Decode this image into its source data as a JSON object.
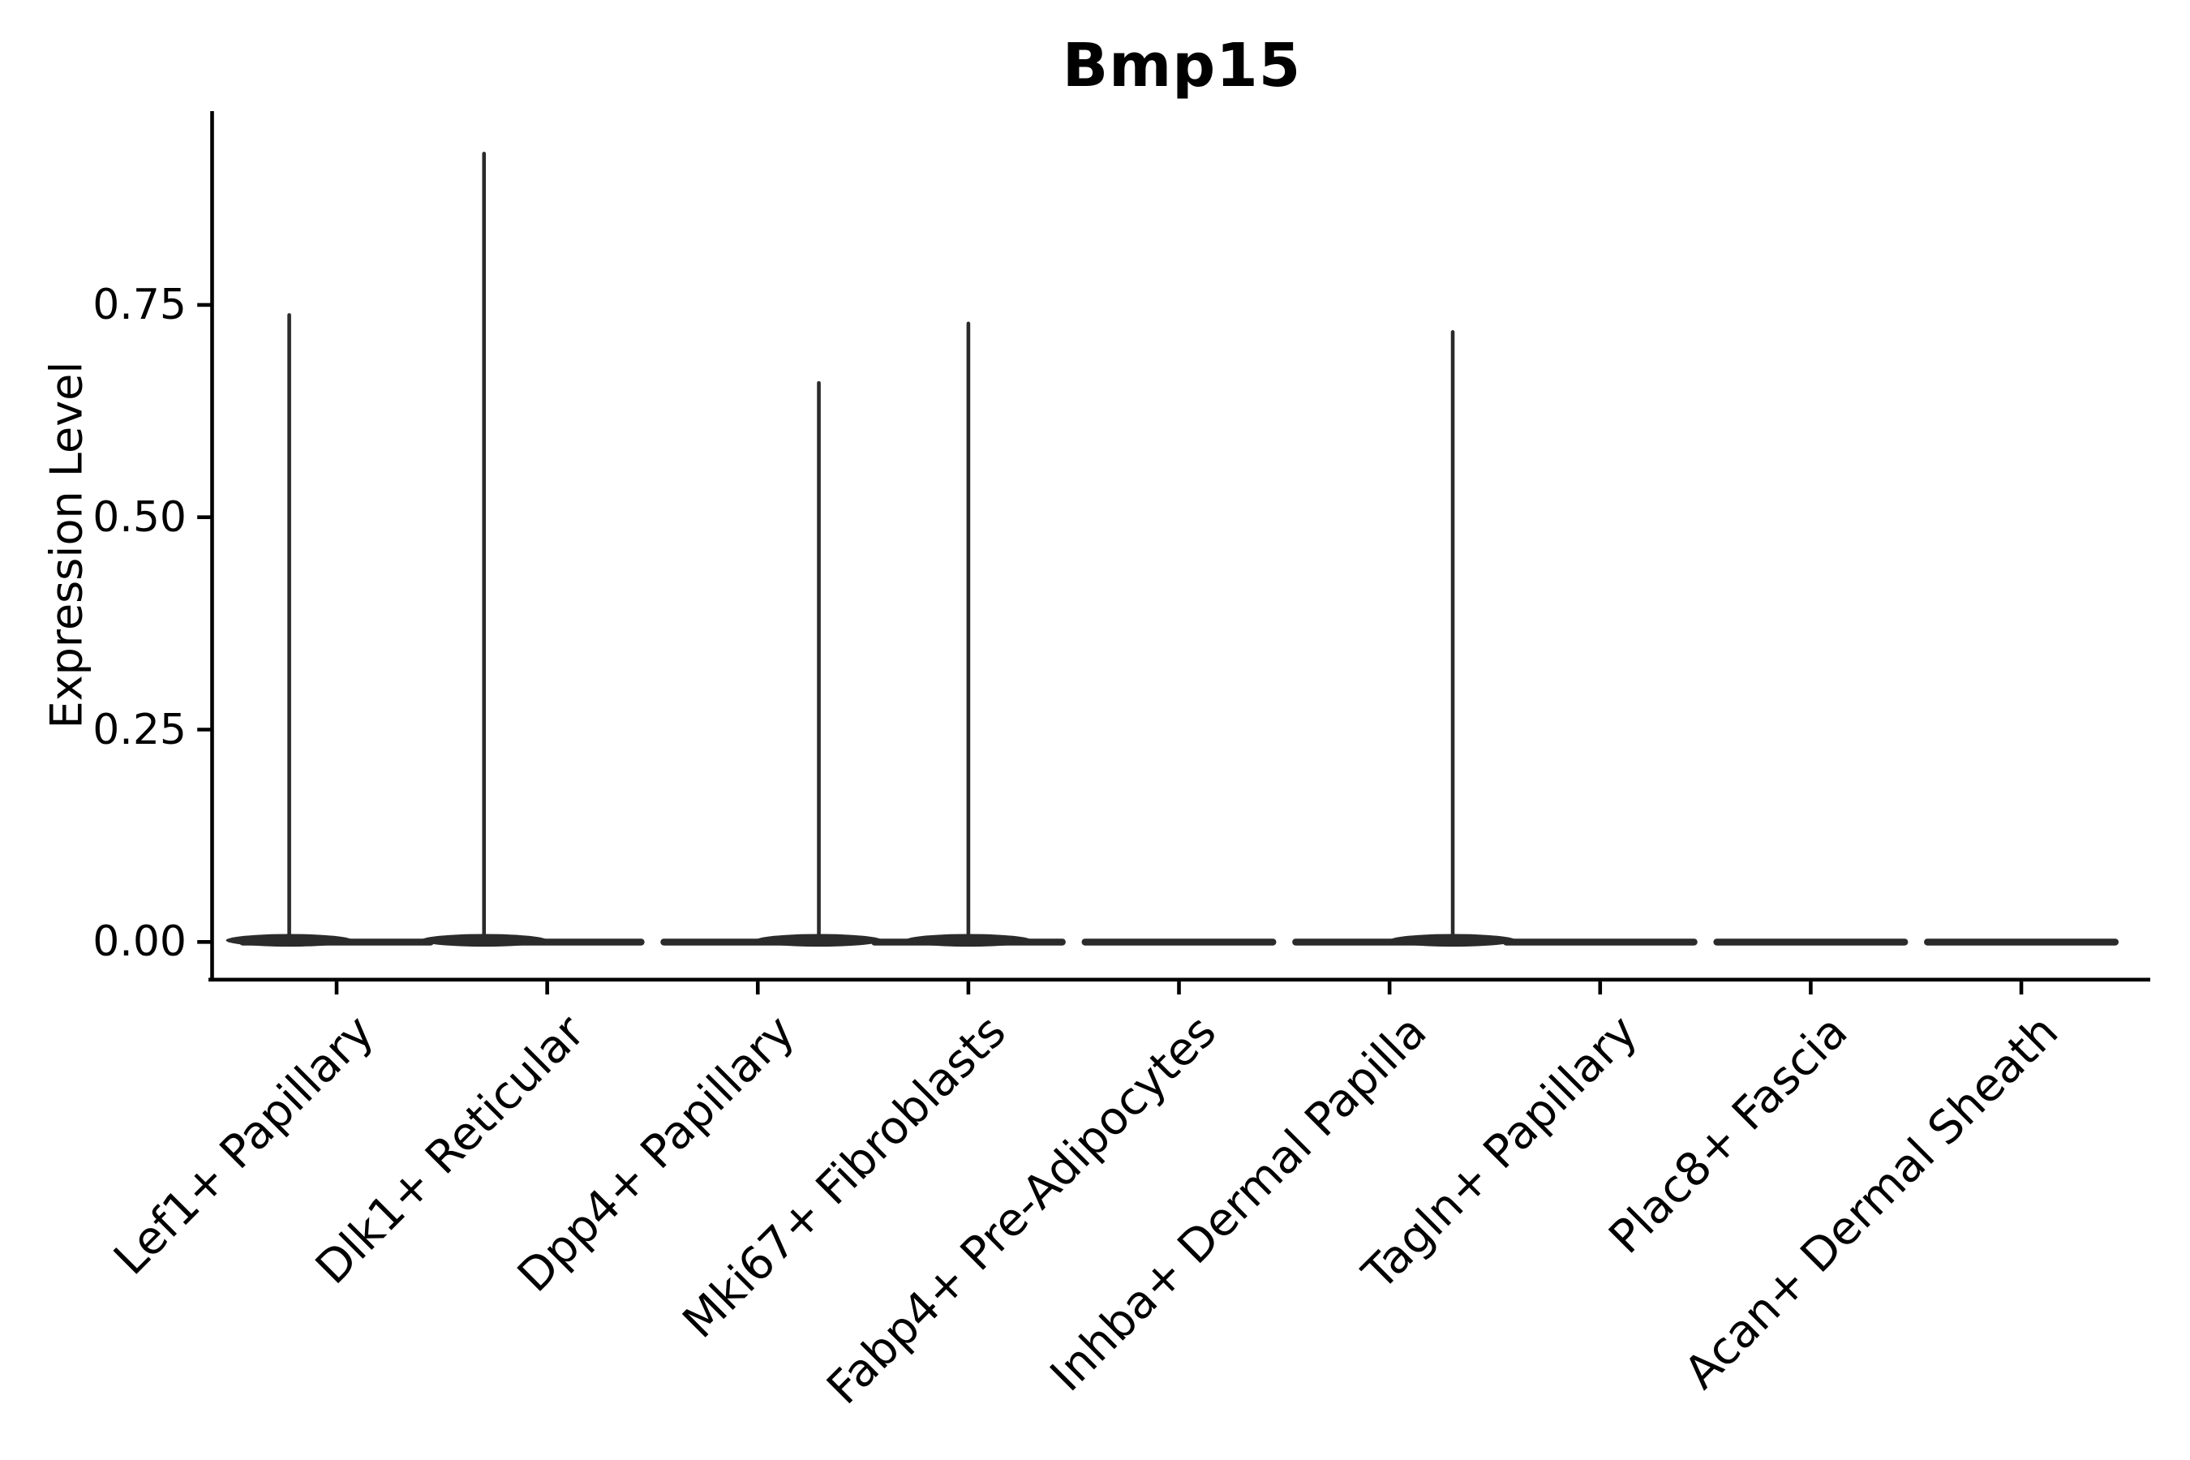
{
  "title": "Bmp15",
  "chart_data": {
    "type": "violin",
    "title": "Bmp15",
    "xlabel": "",
    "ylabel": "Expression Level",
    "categories": [
      "Lef1+ Papillary",
      "Dlk1+ Reticular",
      "Dpp4+ Papillary",
      "Mki67+ Fibroblasts",
      "Fabp4+ Pre-Adipocytes",
      "Inhba+ Dermal Papilla",
      "Tagln+ Papillary",
      "Plac8+ Fascia",
      "Acan+ Dermal Sheath"
    ],
    "series": [
      {
        "name": "Bmp15 expression",
        "max_values": [
          0.74,
          0.93,
          0.66,
          0.73,
          0,
          0.72,
          0,
          0,
          0
        ],
        "body_value": 0
      }
    ],
    "spike_offsets_frac": [
      -0.225,
      -0.3,
      0.29,
      0,
      null,
      0.3,
      null,
      null,
      null
    ],
    "yticks": [
      0,
      0.25,
      0.5,
      0.75
    ],
    "ytick_labels": [
      "0.00",
      "0.25",
      "0.50",
      "0.75"
    ],
    "ylim": [
      0,
      0.98
    ],
    "grid": false,
    "legend": "none",
    "description": "Flat violin bodies at expression 0 with thin density spikes up to the max expression value; no spikes for Fabp4+ Pre-Adipocytes, Tagln+ Papillary, Plac8+ Fascia, Acan+ Dermal Sheath",
    "colors": {
      "violin": "#2b2b2b",
      "axis": "#000000",
      "text": "#000000",
      "background": "#ffffff"
    }
  }
}
